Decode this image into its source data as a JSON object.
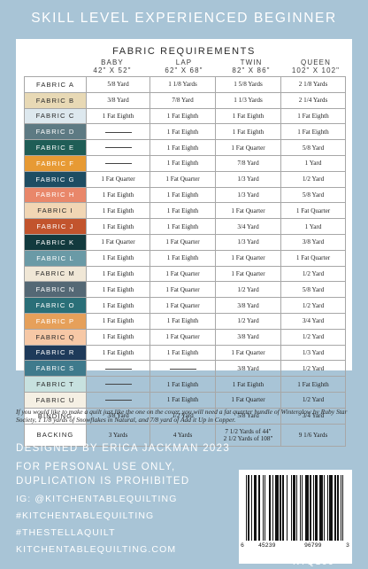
{
  "header": {
    "skill_level": "SKILL LEVEL EXPERIENCED BEGINNER"
  },
  "table": {
    "title": "FABRIC REQUIREMENTS",
    "columns": [
      {
        "name": "BABY",
        "size": "42\" X 52\""
      },
      {
        "name": "LAP",
        "size": "62\" X 68\""
      },
      {
        "name": "TWIN",
        "size": "82\" X 86\""
      },
      {
        "name": "QUEEN",
        "size": "102\" X 102\""
      }
    ],
    "rows": [
      {
        "label": "FABRIC A",
        "color": "#ffffff",
        "text_color": "#2a2a2a",
        "values": [
          "5/8 Yard",
          "1 1/8 Yards",
          "1 5/8 Yards",
          "2 1/8 Yards"
        ]
      },
      {
        "label": "FABRIC B",
        "color": "#e8d9b5",
        "text_color": "#2a2a2a",
        "values": [
          "3/8 Yard",
          "7/8 Yard",
          "1 1/3 Yards",
          "2 1/4 Yards"
        ]
      },
      {
        "label": "FABRIC C",
        "color": "#dde8ee",
        "text_color": "#2a2a2a",
        "values": [
          "1 Fat Eighth",
          "1 Fat Eighth",
          "1 Fat Eighth",
          "1 Fat Eighth"
        ]
      },
      {
        "label": "FABRIC D",
        "color": "#5d7a83",
        "text_color": "#ffffff",
        "values": [
          "",
          "1 Fat Eighth",
          "1 Fat Eighth",
          "1 Fat Eighth"
        ]
      },
      {
        "label": "FABRIC E",
        "color": "#1f5d56",
        "text_color": "#ffffff",
        "values": [
          "",
          "1 Fat Eighth",
          "1 Fat Quarter",
          "5/8 Yard"
        ]
      },
      {
        "label": "FABRIC F",
        "color": "#e79a34",
        "text_color": "#ffffff",
        "values": [
          "",
          "1 Fat Eighth",
          "7/8 Yard",
          "1 Yard"
        ]
      },
      {
        "label": "FABRIC G",
        "color": "#1e4d63",
        "text_color": "#ffffff",
        "values": [
          "1 Fat Quarter",
          "1 Fat Quarter",
          "1/3 Yard",
          "1/2 Yard"
        ]
      },
      {
        "label": "FABRIC H",
        "color": "#e9876a",
        "text_color": "#ffffff",
        "values": [
          "1 Fat Eighth",
          "1 Fat Eighth",
          "1/3 Yard",
          "5/8 Yard"
        ]
      },
      {
        "label": "FABRIC I",
        "color": "#f1d6b4",
        "text_color": "#2a2a2a",
        "values": [
          "1 Fat Eighth",
          "1 Fat Eighth",
          "1 Fat Quarter",
          "1 Fat Quarter"
        ]
      },
      {
        "label": "FABRIC J",
        "color": "#c2542d",
        "text_color": "#ffffff",
        "values": [
          "1 Fat Eighth",
          "1 Fat Eighth",
          "3/4 Yard",
          "1 Yard"
        ]
      },
      {
        "label": "FABRIC K",
        "color": "#123a3e",
        "text_color": "#ffffff",
        "values": [
          "1 Fat Quarter",
          "1 Fat Quarter",
          "1/3 Yard",
          "3/8 Yard"
        ]
      },
      {
        "label": "FABRIC L",
        "color": "#6a9aa6",
        "text_color": "#ffffff",
        "values": [
          "1 Fat Eighth",
          "1 Fat Eighth",
          "1 Fat Quarter",
          "1 Fat Quarter"
        ]
      },
      {
        "label": "FABRIC M",
        "color": "#f0e7d6",
        "text_color": "#2a2a2a",
        "values": [
          "1 Fat Eighth",
          "1 Fat Quarter",
          "1 Fat Quarter",
          "1/2 Yard"
        ]
      },
      {
        "label": "FABRIC N",
        "color": "#546875",
        "text_color": "#ffffff",
        "values": [
          "1 Fat Eighth",
          "1 Fat Quarter",
          "1/2 Yard",
          "5/8 Yard"
        ]
      },
      {
        "label": "FABRIC O",
        "color": "#2a6f78",
        "text_color": "#ffffff",
        "values": [
          "1 Fat Eighth",
          "1 Fat Quarter",
          "3/8 Yard",
          "1/2 Yard"
        ]
      },
      {
        "label": "FABRIC P",
        "color": "#e6a05a",
        "text_color": "#ffffff",
        "values": [
          "1 Fat Eighth",
          "1 Fat Eighth",
          "1/2 Yard",
          "3/4 Yard"
        ]
      },
      {
        "label": "FABRIC Q",
        "color": "#f6c8a6",
        "text_color": "#2a2a2a",
        "values": [
          "1 Fat Eighth",
          "1 Fat Quarter",
          "3/8 Yard",
          "1/2 Yard"
        ]
      },
      {
        "label": "FABRIC R",
        "color": "#1e3a5a",
        "text_color": "#ffffff",
        "values": [
          "1 Fat Eighth",
          "1 Fat Eighth",
          "1 Fat Quarter",
          "1/3 Yard"
        ]
      },
      {
        "label": "FABRIC S",
        "color": "#3f7a8c",
        "text_color": "#ffffff",
        "values": [
          "",
          "",
          "3/8 Yard",
          "1/2 Yard"
        ]
      },
      {
        "label": "FABRIC T",
        "color": "#c7e1df",
        "text_color": "#2a2a2a",
        "values": [
          "",
          "1 Fat Eighth",
          "1 Fat Eighth",
          "1 Fat Eighth"
        ]
      },
      {
        "label": "FABRIC U",
        "color": "#f5f0e4",
        "text_color": "#2a2a2a",
        "values": [
          "",
          "1 Fat Eighth",
          "1 Fat Quarter",
          "1/2 Yard"
        ]
      },
      {
        "label": "BINDING",
        "color": "#ffffff",
        "text_color": "#2a2a2a",
        "values": [
          "3/8 Yard",
          "1/2 Yard",
          "5/8 Yard",
          "3/4 Yard"
        ]
      },
      {
        "label": "BACKING",
        "color": "#ffffff",
        "text_color": "#2a2a2a",
        "tall": true,
        "values": [
          "3 Yards",
          "4 Yards",
          "7 1/2 Yards of 44\"|2 1/2 Yards of 108\"",
          "9 1/6 Yards"
        ]
      }
    ]
  },
  "note": "If you would like to make a quilt just like the one on the cover, you will need a fat quarter bundle of Winterglow by Ruby Star Society, 1 1/8 yards of Snowflakes in Natural, and 7/8 yard of Add it Up in Copper.",
  "credits": {
    "designer": "DESIGNED BY ERICA JACKMAN 2023",
    "personal_use_1": "FOR PERSONAL USE ONLY,",
    "personal_use_2": "DUPLICATION IS PROHIBITED"
  },
  "social": {
    "instagram": "IG: @KITCHENTABLEQUILTING",
    "hashtag_1": "#KITCHENTABLEQUILTING",
    "hashtag_2": "#THESTELLAQUILT",
    "website": "KITCHENTABLEQUILTING.COM"
  },
  "barcode": {
    "d1": "6",
    "d2": "45239",
    "d3": "96799",
    "d4": "3"
  },
  "product_code": "KTQ166"
}
